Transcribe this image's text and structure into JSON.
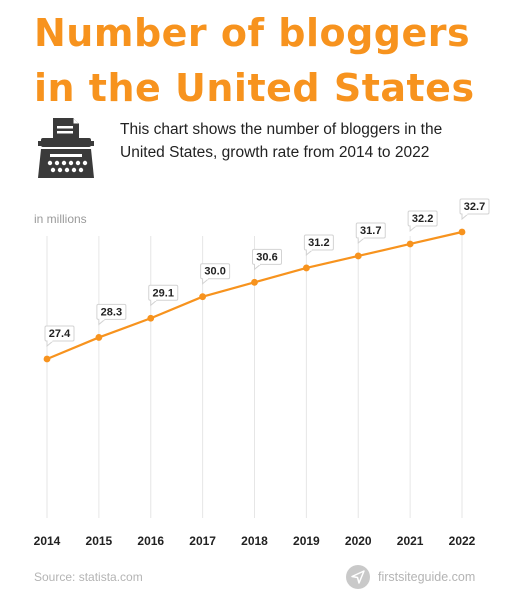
{
  "header": {
    "title_line1": "Number of bloggers",
    "title_line2": "in the United States",
    "subtitle_line1": "This chart shows the number of bloggers in the",
    "subtitle_line2": "United States, growth rate from 2014 to 2022"
  },
  "footer": {
    "source": "Source: statista.com",
    "brand": "firstsiteguide.com"
  },
  "icons": {
    "header": "typewriter-icon",
    "brand": "paper-plane-icon"
  },
  "colors": {
    "accent": "#F7931E",
    "text": "#222222",
    "muted": "#9a9a9a",
    "gridline": "#e6e6e6",
    "icon": "#3a3a3a"
  },
  "chart_data": {
    "type": "line",
    "ylabel": "in millions",
    "categories": [
      "2014",
      "2015",
      "2016",
      "2017",
      "2018",
      "2019",
      "2020",
      "2021",
      "2022"
    ],
    "values": [
      27.4,
      28.3,
      29.1,
      30.0,
      30.6,
      31.2,
      31.7,
      32.2,
      32.7
    ],
    "value_labels": [
      "27.4",
      "28.3",
      "29.1",
      "30.0",
      "30.6",
      "31.2",
      "31.7",
      "32.2",
      "32.7"
    ],
    "grid": "vertical",
    "legend": "none"
  }
}
